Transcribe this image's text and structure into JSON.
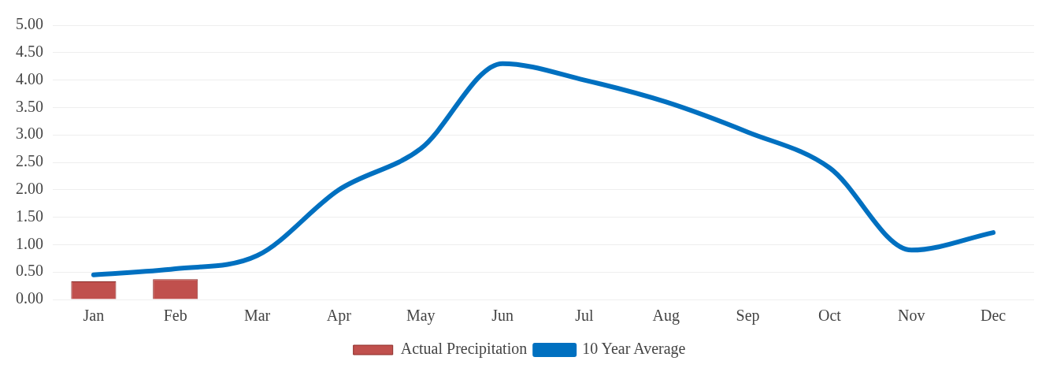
{
  "chart_data": {
    "type": "bar",
    "categories": [
      "Jan",
      "Feb",
      "Mar",
      "Apr",
      "May",
      "Jun",
      "Jul",
      "Aug",
      "Sep",
      "Oct",
      "Nov",
      "Dec"
    ],
    "series": [
      {
        "name": "Actual Precipitation",
        "color": "#c0504d",
        "values": [
          0.33,
          0.37,
          null,
          null,
          null,
          null,
          null,
          null,
          null,
          null,
          null,
          null
        ]
      },
      {
        "name": "10 Year Average",
        "type": "line",
        "color": "#0070c0",
        "values": [
          0.45,
          0.56,
          0.8,
          2.0,
          2.75,
          4.3,
          4.0,
          3.6,
          3.05,
          2.4,
          0.9,
          1.22
        ]
      }
    ],
    "ylim": [
      0,
      5
    ],
    "yticks": [
      {
        "value": 0,
        "label": "0.00"
      },
      {
        "value": 0.5,
        "label": "0.50"
      },
      {
        "value": 1,
        "label": "1.00"
      },
      {
        "value": 1.5,
        "label": "1.50"
      },
      {
        "value": 2,
        "label": "2.00"
      },
      {
        "value": 2.5,
        "label": "2.50"
      },
      {
        "value": 3,
        "label": "3.00"
      },
      {
        "value": 3.5,
        "label": "3.50"
      },
      {
        "value": 4,
        "label": "4.00"
      },
      {
        "value": 4.5,
        "label": "4.50"
      },
      {
        "value": 5,
        "label": "5.00"
      }
    ],
    "grid": "y",
    "legend": "bottom",
    "marker": "none"
  }
}
